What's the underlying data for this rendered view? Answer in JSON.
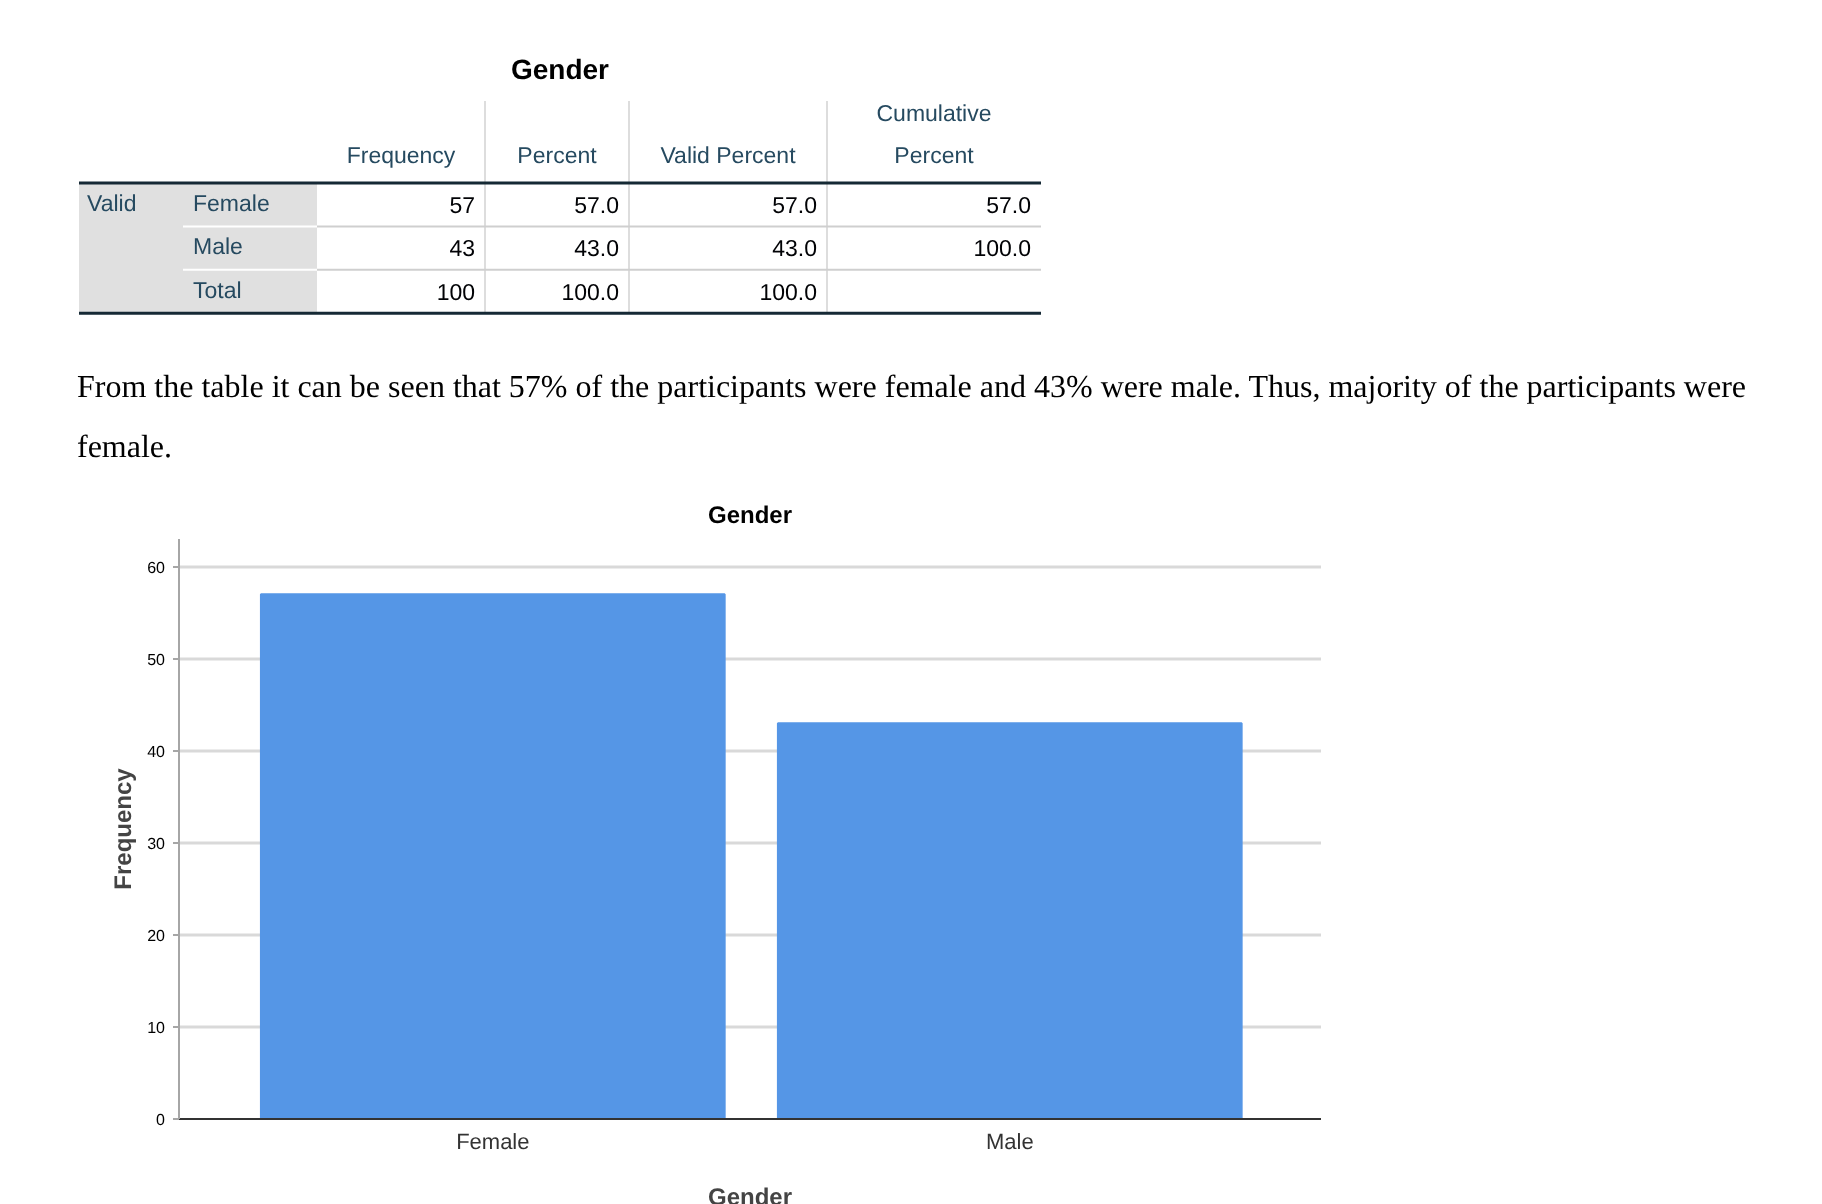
{
  "chart_data": [
    {
      "type": "other",
      "title": "Gender",
      "ylabel": "Valid",
      "categories": [
        "Frequency",
        "Percent",
        "Valid Percent",
        "Cumulative Percent"
      ],
      "y_categories": [
        "Female",
        "Male",
        "Total"
      ],
      "cell_labels": [
        [
          "57",
          "57.0",
          "57.0",
          "57.0"
        ],
        [
          "43",
          "43.0",
          "43.0",
          "100.0"
        ],
        [
          "100",
          "100.0",
          "100.0",
          null
        ]
      ],
      "annotations": [
        "From the table it can be seen that 57% of the participants were female and 43% were male. Thus, majority of the participants were female."
      ]
    },
    {
      "type": "bar",
      "title": "Gender",
      "xlabel": "Gender",
      "ylabel": "Frequency",
      "categories": [
        "Female",
        "Male"
      ],
      "values": [
        57,
        43
      ],
      "color": "#5596e6",
      "ylim": [
        0,
        63
      ],
      "yticks": [
        0,
        10,
        20,
        30,
        40,
        50,
        60
      ],
      "grid": "y"
    }
  ]
}
